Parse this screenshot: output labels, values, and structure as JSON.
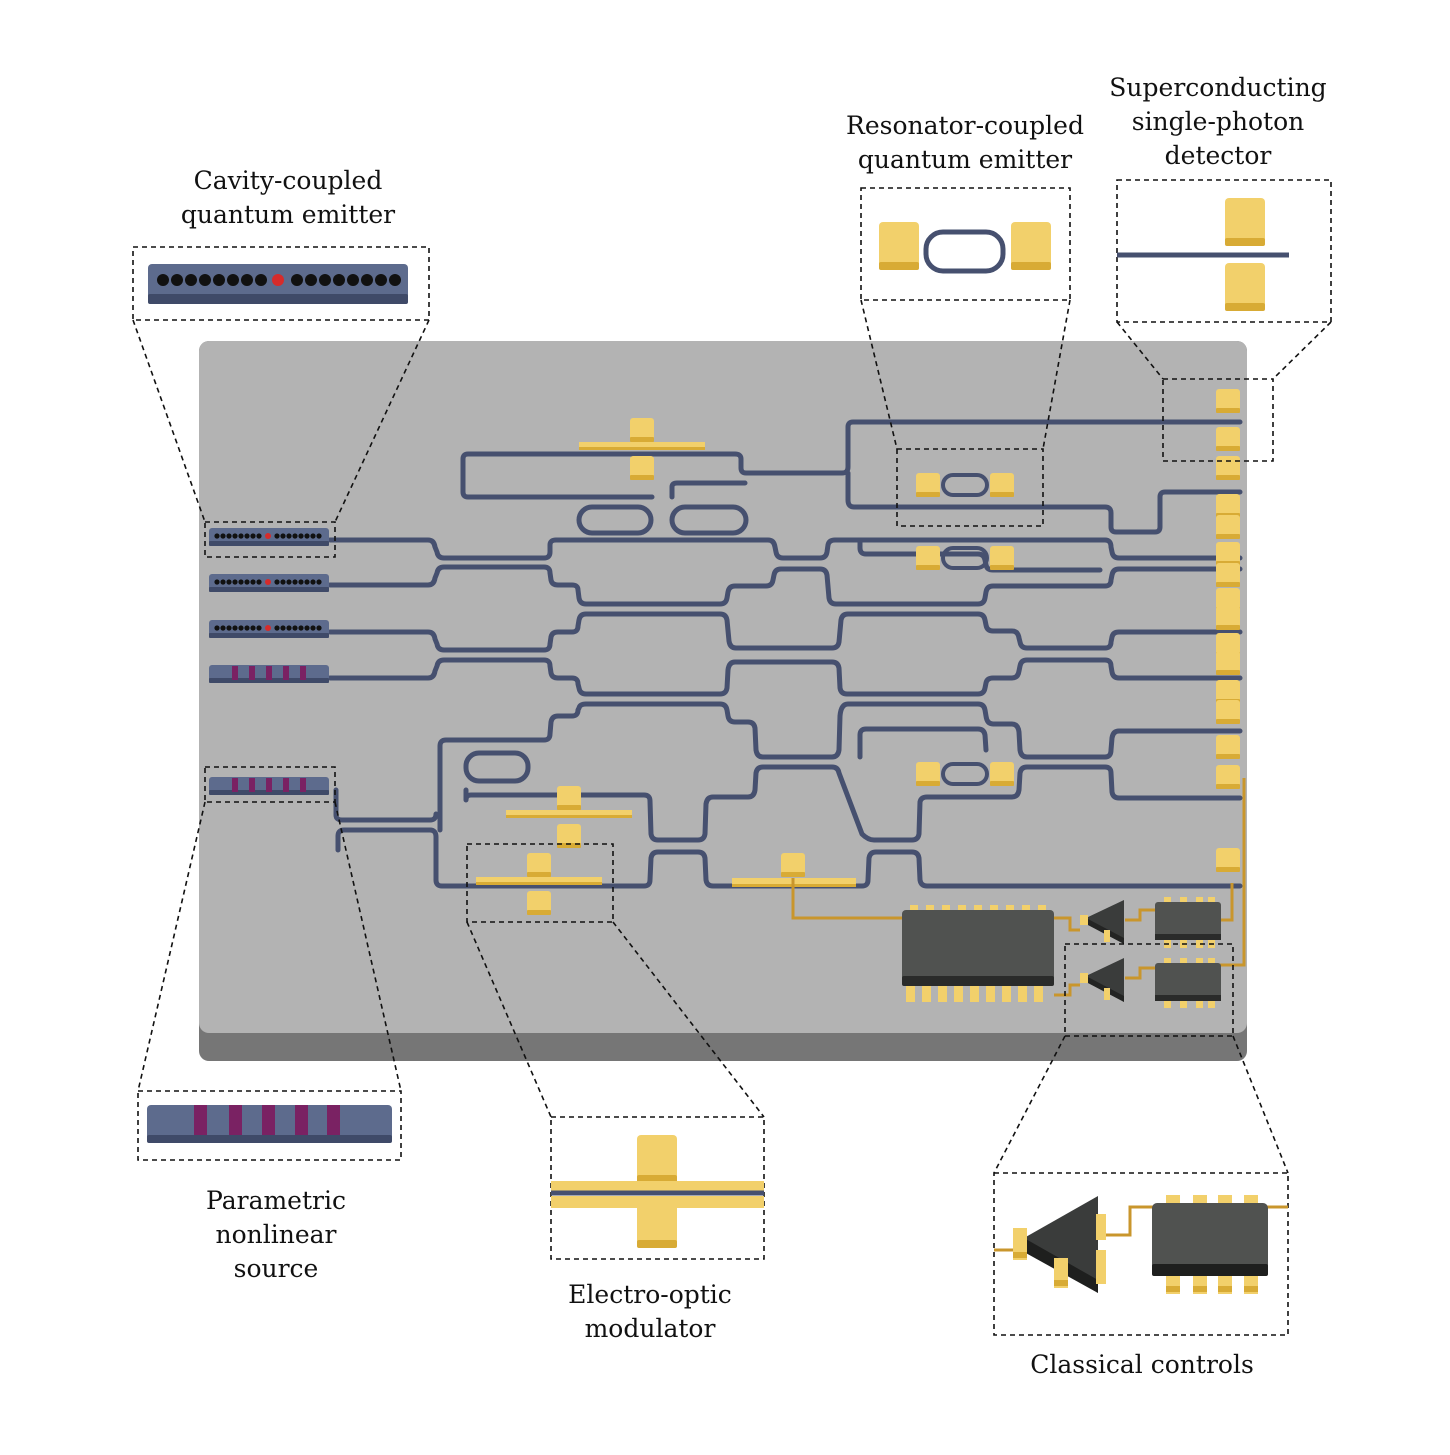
{
  "labels": {
    "cavity_emitter": [
      "Cavity-coupled",
      "quantum emitter"
    ],
    "resonator_emitter": [
      "Resonator-coupled",
      "quantum emitter"
    ],
    "detector": [
      "Superconducting",
      "single-photon",
      "detector"
    ],
    "nonlinear_source": [
      "Parametric",
      "nonlinear",
      "source"
    ],
    "modulator": [
      "Electro-optic",
      "modulator"
    ],
    "controls": [
      "Classical controls"
    ]
  },
  "colors": {
    "chip_top": "#b3b3b3",
    "chip_edge": "#767676",
    "waveguide": "#46506f",
    "gold": "#f2d06b",
    "gold_dark": "#d8ab35",
    "trace": "#c9962c",
    "ic_body": "#505250",
    "emitter_body": "#5d6b8d",
    "emitter_body_dark": "#3f4a68",
    "emitter_dot": "#111111",
    "emitter_center_dot": "#d62b2b",
    "nonlinear_stripe": "#7a2263"
  },
  "icons": [
    "emitter-bar-icon",
    "nonlinear-bar-icon",
    "ring-resonator-icon",
    "gold-pad-icon",
    "amplifier-icon",
    "ic-chip-icon"
  ]
}
